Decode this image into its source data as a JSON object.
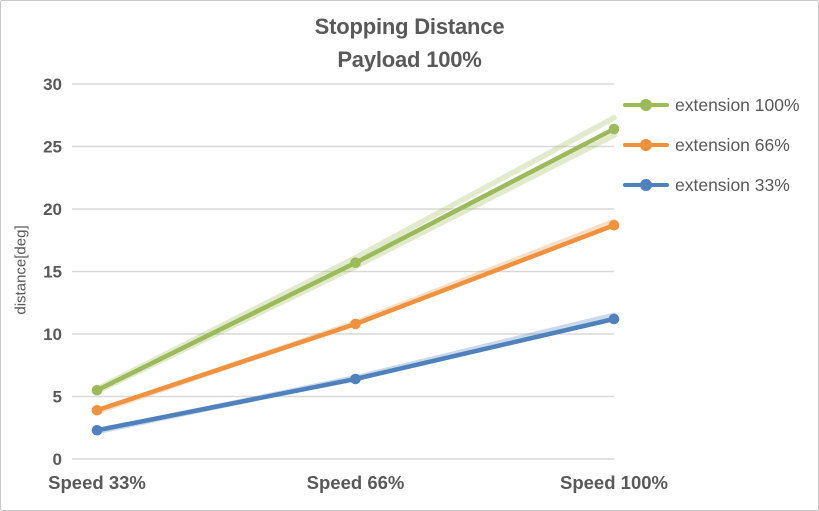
{
  "chart_data": {
    "type": "line",
    "title": "Stopping Distance",
    "subtitle": "Payload 100%",
    "ylabel": "distance[deg]",
    "ylim": [
      0,
      30
    ],
    "ytick_step": 5,
    "grid": true,
    "legend_position": "right",
    "categories": [
      "Speed 33%",
      "Speed 66%",
      "Speed 100%"
    ],
    "series": [
      {
        "name": "extension 100%",
        "values": [
          5.5,
          15.7,
          26.4
        ],
        "color": "#9CBA5A"
      },
      {
        "name": "extension 66%",
        "values": [
          3.9,
          10.8,
          18.7
        ],
        "color": "#F0913E"
      },
      {
        "name": "extension 33%",
        "values": [
          2.3,
          6.4,
          11.2
        ],
        "color": "#4F81BD"
      }
    ],
    "ghost_series": [
      {
        "parent": "extension 100%",
        "values": [
          5.6,
          16.1,
          27.3
        ],
        "color": "#9CBA5A"
      },
      {
        "parent": "extension 100%",
        "values": [
          5.4,
          15.4,
          25.9
        ],
        "color": "#9CBA5A"
      },
      {
        "parent": "extension 66%",
        "values": [
          3.8,
          10.9,
          19.0
        ],
        "color": "#F0913E"
      },
      {
        "parent": "extension 33%",
        "values": [
          2.2,
          6.5,
          11.5
        ],
        "color": "#4F81BD"
      }
    ],
    "text_color": "#595959",
    "gridline_color": "#D9D9D9"
  }
}
